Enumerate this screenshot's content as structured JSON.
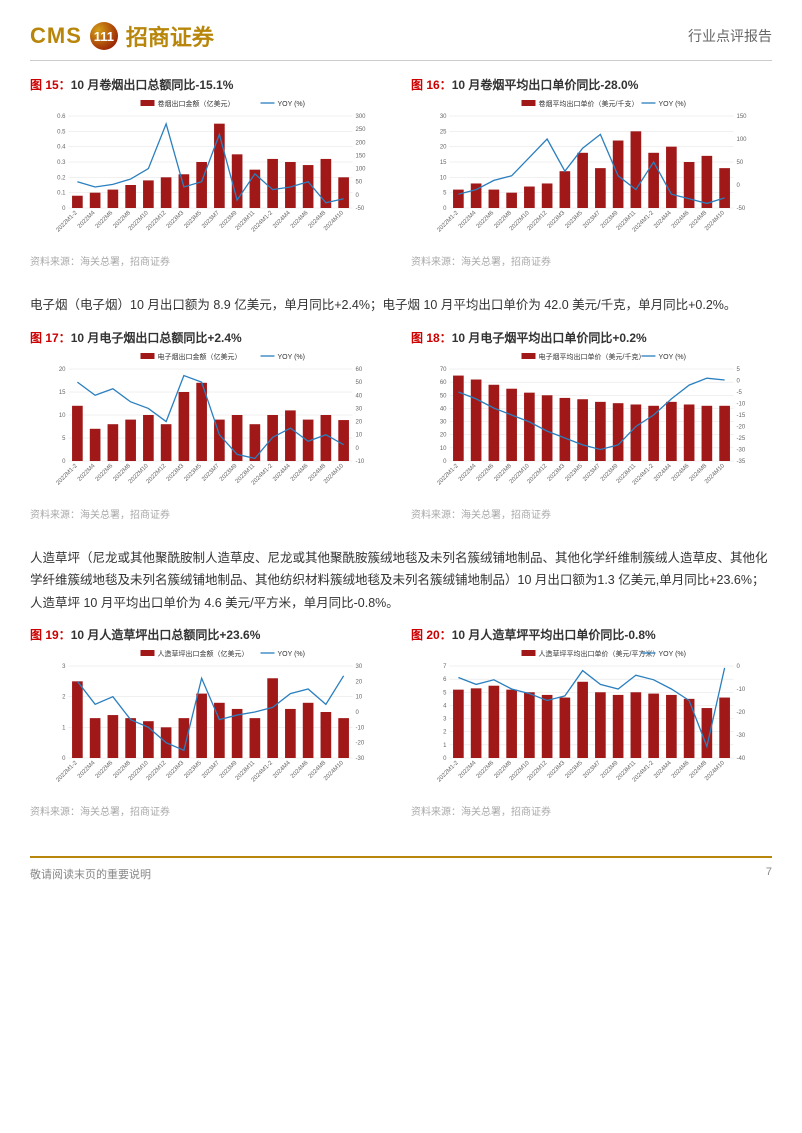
{
  "header": {
    "cms": "CMS",
    "circle": "111",
    "brand": "招商证券",
    "report_type": "行业点评报告"
  },
  "common": {
    "x_labels": [
      "2022M1-2",
      "2022M4",
      "2022M6",
      "2022M8",
      "2022M10",
      "2022M12",
      "2023M3",
      "2023M5",
      "2023M7",
      "2023M9",
      "2023M11",
      "2024M1-2",
      "2024M4",
      "2024M6",
      "2024M8",
      "2024M10"
    ],
    "bar_color": "#a01818",
    "line_color": "#2a7fbf",
    "grid_color": "#e0e0e0",
    "source_text": "资料来源：海关总署，招商证券"
  },
  "text_blocks": {
    "block1": "电子烟（电子烟）10 月出口额为 8.9 亿美元，单月同比+2.4%；电子烟 10 月平均出口单价为 42.0 美元/千克，单月同比+0.2%。",
    "block2": "人造草坪（尼龙或其他聚酰胺制人造草皮、尼龙或其他聚酰胺簇绒地毯及未列名簇绒铺地制品、其他化学纤维制簇绒人造草皮、其他化学纤维簇绒地毯及未列名簇绒铺地制品、其他纺织材料簇绒地毯及未列名簇绒铺地制品）10 月出口额为1.3 亿美元,单月同比+23.6%；人造草坪 10 月平均出口单价为 4.6 美元/平方米，单月同比-0.8%。"
  },
  "charts": {
    "c15": {
      "fig_num": "图 15：",
      "title": "10 月卷烟出口总额同比-15.1%",
      "legend_bar": "卷烟出口金额（亿美元）",
      "legend_line": "YOY (%)",
      "yl": {
        "min": 0,
        "max": 0.6,
        "ticks": [
          0,
          0.1,
          0.2,
          0.3,
          0.4,
          0.5,
          0.6
        ]
      },
      "yr": {
        "min": -50,
        "max": 300,
        "ticks": [
          -50,
          0,
          50,
          100,
          150,
          200,
          250,
          300
        ]
      },
      "bars": [
        0.08,
        0.1,
        0.12,
        0.15,
        0.18,
        0.2,
        0.22,
        0.3,
        0.55,
        0.35,
        0.25,
        0.32,
        0.3,
        0.28,
        0.32,
        0.2
      ],
      "line": [
        50,
        30,
        40,
        60,
        100,
        270,
        30,
        50,
        230,
        -20,
        80,
        20,
        30,
        50,
        -30,
        -15
      ]
    },
    "c16": {
      "fig_num": "图 16：",
      "title": "10 月卷烟平均出口单价同比-28.0%",
      "legend_bar": "卷烟平均出口单价（美元/千支）",
      "legend_line": "YOY (%)",
      "yl": {
        "min": 0,
        "max": 30,
        "ticks": [
          0,
          5,
          10,
          15,
          20,
          25,
          30
        ]
      },
      "yr": {
        "min": -50,
        "max": 150,
        "ticks": [
          -50,
          0,
          50,
          100,
          150
        ]
      },
      "bars": [
        6,
        8,
        6,
        5,
        7,
        8,
        12,
        18,
        13,
        22,
        25,
        18,
        20,
        15,
        17,
        13
      ],
      "line": [
        -20,
        -10,
        10,
        20,
        60,
        100,
        30,
        80,
        110,
        20,
        -10,
        50,
        -20,
        -30,
        -40,
        -28
      ]
    },
    "c17": {
      "fig_num": "图 17：",
      "title": "10 月电子烟出口总额同比+2.4%",
      "legend_bar": "电子烟出口金额（亿美元）",
      "legend_line": "YOY (%)",
      "yl": {
        "min": 0,
        "max": 20,
        "ticks": [
          0,
          5,
          10,
          15,
          20
        ]
      },
      "yr": {
        "min": -10,
        "max": 60,
        "ticks": [
          -10,
          0,
          10,
          20,
          30,
          40,
          50,
          60
        ]
      },
      "bars": [
        12,
        7,
        8,
        9,
        10,
        8,
        15,
        17,
        9,
        10,
        8,
        10,
        11,
        9,
        10,
        8.9
      ],
      "line": [
        50,
        40,
        45,
        35,
        30,
        20,
        55,
        50,
        10,
        -5,
        -8,
        8,
        15,
        5,
        10,
        2.4
      ]
    },
    "c18": {
      "fig_num": "图 18：",
      "title": "10 月电子烟平均出口单价同比+0.2%",
      "legend_bar": "电子烟平均出口单价（美元/千克）",
      "legend_line": "YOY (%)",
      "yl": {
        "min": 0,
        "max": 70,
        "ticks": [
          0,
          10,
          20,
          30,
          40,
          50,
          60,
          70
        ]
      },
      "yr": {
        "min": -35,
        "max": 5,
        "ticks": [
          -35,
          -30,
          -25,
          -20,
          -15,
          -10,
          -5,
          0,
          5
        ]
      },
      "bars": [
        65,
        62,
        58,
        55,
        52,
        50,
        48,
        47,
        45,
        44,
        43,
        42,
        45,
        43,
        42,
        42
      ],
      "line": [
        -5,
        -8,
        -12,
        -15,
        -18,
        -22,
        -25,
        -28,
        -30,
        -28,
        -20,
        -15,
        -8,
        -2,
        1,
        0.2
      ]
    },
    "c19": {
      "fig_num": "图 19：",
      "title": "10 月人造草坪出口总额同比+23.6%",
      "legend_bar": "人造草坪出口金额（亿美元）",
      "legend_line": "YOY (%)",
      "yl": {
        "min": 0,
        "max": 3,
        "ticks": [
          0,
          1,
          2,
          3
        ]
      },
      "yr": {
        "min": -30,
        "max": 30,
        "ticks": [
          -30,
          -20,
          -10,
          0,
          10,
          20,
          30
        ]
      },
      "bars": [
        2.5,
        1.3,
        1.4,
        1.3,
        1.2,
        1,
        1.3,
        2.1,
        1.8,
        1.6,
        1.3,
        2.6,
        1.6,
        1.8,
        1.5,
        1.3
      ],
      "line": [
        20,
        5,
        10,
        -5,
        -10,
        -20,
        -25,
        22,
        -5,
        -2,
        0,
        3,
        12,
        15,
        5,
        23.6
      ]
    },
    "c20": {
      "fig_num": "图 20：",
      "title": "10 月人造草坪平均出口单价同比-0.8%",
      "legend_bar": "人造草坪平均出口单价（美元/平方米）",
      "legend_line": "YOY (%)",
      "yl": {
        "min": 0,
        "max": 7,
        "ticks": [
          0,
          1,
          2,
          3,
          4,
          5,
          6,
          7
        ]
      },
      "yr": {
        "min": -40,
        "max": 0,
        "ticks": [
          -40,
          -30,
          -20,
          -10,
          0
        ]
      },
      "bars": [
        5.2,
        5.3,
        5.5,
        5.2,
        5.0,
        4.8,
        4.6,
        5.8,
        5.0,
        4.8,
        5.0,
        4.9,
        4.8,
        4.5,
        3.8,
        4.6
      ],
      "line": [
        -5,
        -8,
        -6,
        -10,
        -12,
        -15,
        -13,
        -2,
        -8,
        -10,
        -4,
        -6,
        -10,
        -15,
        -35,
        -0.8
      ]
    }
  },
  "footer": {
    "disclaimer": "敬请阅读末页的重要说明",
    "page": "7"
  }
}
